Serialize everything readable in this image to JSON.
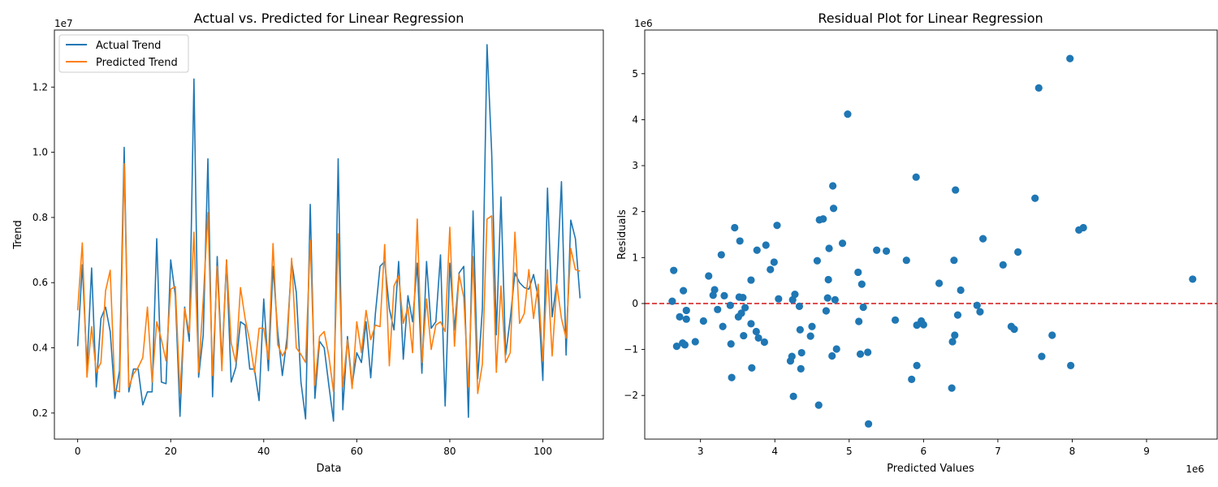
{
  "chart_data": [
    {
      "type": "line",
      "title": "Actual vs. Predicted for Linear Regression",
      "xlabel": "Data",
      "ylabel": "Trend",
      "offset_text": "1e7",
      "xlim": [
        -5,
        113
      ],
      "ylim": [
        1200000,
        13750000
      ],
      "xticks": [
        0,
        20,
        40,
        60,
        80,
        100
      ],
      "xtick_labels": [
        "0",
        "20",
        "40",
        "60",
        "80",
        "100"
      ],
      "yticks": [
        2000000,
        4000000,
        6000000,
        8000000,
        10000000,
        12000000
      ],
      "ytick_labels": [
        "0.2",
        "0.4",
        "0.6",
        "0.8",
        "1.0",
        "1.2"
      ],
      "legend_position": "top-left",
      "x_start": 0,
      "series": [
        {
          "name": "Actual Trend",
          "color": "#1f77b4",
          "values": [
            4050000,
            6550000,
            3400000,
            6450000,
            2800000,
            4900000,
            5250000,
            4500000,
            2450000,
            3300000,
            10150000,
            2650000,
            3350000,
            3350000,
            2250000,
            2650000,
            2650000,
            7350000,
            2950000,
            2900000,
            6700000,
            5600000,
            1900000,
            5250000,
            4200000,
            12250000,
            3100000,
            4400000,
            9800000,
            2500000,
            6800000,
            3500000,
            6700000,
            2950000,
            3400000,
            4800000,
            4700000,
            3350000,
            3350000,
            2380000,
            5500000,
            3300000,
            6500000,
            4500000,
            3150000,
            4300000,
            6650000,
            5700000,
            2950000,
            1820000,
            8400000,
            2450000,
            4200000,
            4000000,
            2850000,
            1750000,
            9800000,
            2100000,
            4350000,
            2850000,
            3850000,
            3550000,
            4800000,
            3080000,
            5050000,
            6500000,
            6650000,
            5200000,
            4550000,
            6650000,
            3650000,
            5600000,
            4800000,
            6600000,
            3220000,
            6650000,
            4600000,
            4800000,
            6850000,
            2220000,
            6600000,
            4550000,
            6300000,
            6500000,
            1870000,
            8200000,
            3050000,
            5200000,
            13300000,
            10000000,
            4400000,
            8630000,
            3780000,
            4900000,
            6300000,
            6000000,
            5850000,
            5800000,
            6250000,
            5550000,
            3000000,
            8900000,
            4950000,
            6000000,
            9100000,
            3780000,
            7920000,
            7350000,
            5520000
          ]
        },
        {
          "name": "Predicted Trend",
          "color": "#ff7f0e",
          "values": [
            5150000,
            7220000,
            3100000,
            4650000,
            3250000,
            3550000,
            5750000,
            6380000,
            2700000,
            2650000,
            9650000,
            2800000,
            3200000,
            3400000,
            3700000,
            5250000,
            2950000,
            4800000,
            4250000,
            3600000,
            5800000,
            5880000,
            2600000,
            5200000,
            4450000,
            7550000,
            3250000,
            5500000,
            8150000,
            3150000,
            6500000,
            3300000,
            6700000,
            4150000,
            3550000,
            5850000,
            4900000,
            4200000,
            3250000,
            4600000,
            4600000,
            3650000,
            7200000,
            4100000,
            3750000,
            4000000,
            6750000,
            4000000,
            3800000,
            3550000,
            7300000,
            2850000,
            4350000,
            4500000,
            3750000,
            2650000,
            7500000,
            2800000,
            4250000,
            2750000,
            4800000,
            3850000,
            5150000,
            4250000,
            4700000,
            4650000,
            7170000,
            3450000,
            5900000,
            6200000,
            4750000,
            5250000,
            3850000,
            7950000,
            3550000,
            5500000,
            3950000,
            4700000,
            4800000,
            4500000,
            7700000,
            4050000,
            6250000,
            5550000,
            2800000,
            6800000,
            2600000,
            3500000,
            7950000,
            8050000,
            3250000,
            5900000,
            3550000,
            3850000,
            7550000,
            4750000,
            5050000,
            6400000,
            4900000,
            5950000,
            3600000,
            6400000,
            3750000,
            5950000,
            4900000,
            4300000,
            7050000,
            6400000,
            6350000
          ]
        }
      ]
    },
    {
      "type": "scatter",
      "title": "Residual Plot for Linear Regression",
      "xlabel": "Predicted Values",
      "ylabel": "Residuals",
      "x_offset_text": "1e6",
      "y_offset_text": "1e6",
      "xlim": [
        2250000,
        9950000
      ],
      "ylim": [
        -2950000,
        5950000
      ],
      "xticks": [
        3000000,
        4000000,
        5000000,
        6000000,
        7000000,
        8000000,
        9000000
      ],
      "xtick_labels": [
        "3",
        "4",
        "5",
        "6",
        "7",
        "8",
        "9"
      ],
      "yticks": [
        -2000000,
        -1000000,
        0,
        1000000,
        2000000,
        3000000,
        4000000,
        5000000
      ],
      "ytick_labels": [
        "−2",
        "−1",
        "0",
        "1",
        "2",
        "3",
        "4",
        "5"
      ],
      "point_color": "#1f77b4",
      "reference_line": {
        "y": 0,
        "color": "#d62728",
        "style": "dashed"
      },
      "points": [
        [
          2620000,
          50000
        ],
        [
          2640000,
          720000
        ],
        [
          2680000,
          -930000
        ],
        [
          2720000,
          -290000
        ],
        [
          2760000,
          -860000
        ],
        [
          2770000,
          280000
        ],
        [
          2790000,
          -900000
        ],
        [
          2810000,
          -150000
        ],
        [
          2810000,
          -340000
        ],
        [
          2930000,
          -830000
        ],
        [
          3040000,
          -380000
        ],
        [
          3110000,
          600000
        ],
        [
          3170000,
          180000
        ],
        [
          3190000,
          300000
        ],
        [
          3230000,
          -130000
        ],
        [
          3280000,
          1060000
        ],
        [
          3300000,
          -500000
        ],
        [
          3320000,
          170000
        ],
        [
          3400000,
          -40000
        ],
        [
          3410000,
          -880000
        ],
        [
          3420000,
          -1610000
        ],
        [
          3460000,
          1650000
        ],
        [
          3510000,
          -290000
        ],
        [
          3520000,
          140000
        ],
        [
          3530000,
          1360000
        ],
        [
          3550000,
          -210000
        ],
        [
          3570000,
          130000
        ],
        [
          3580000,
          -700000
        ],
        [
          3600000,
          -90000
        ],
        [
          3680000,
          -440000
        ],
        [
          3680000,
          510000
        ],
        [
          3690000,
          -1400000
        ],
        [
          3750000,
          -610000
        ],
        [
          3760000,
          1160000
        ],
        [
          3780000,
          -750000
        ],
        [
          3860000,
          -840000
        ],
        [
          3880000,
          1270000
        ],
        [
          3940000,
          740000
        ],
        [
          3990000,
          900000
        ],
        [
          4030000,
          1700000
        ],
        [
          4050000,
          100000
        ],
        [
          4210000,
          -1250000
        ],
        [
          4230000,
          -1150000
        ],
        [
          4240000,
          80000
        ],
        [
          4250000,
          -2020000
        ],
        [
          4270000,
          200000
        ],
        [
          4330000,
          -60000
        ],
        [
          4340000,
          -570000
        ],
        [
          4350000,
          -1420000
        ],
        [
          4360000,
          -1070000
        ],
        [
          4480000,
          -710000
        ],
        [
          4500000,
          -500000
        ],
        [
          4570000,
          930000
        ],
        [
          4590000,
          -2210000
        ],
        [
          4600000,
          1820000
        ],
        [
          4650000,
          1840000
        ],
        [
          4690000,
          -160000
        ],
        [
          4710000,
          120000
        ],
        [
          4720000,
          520000
        ],
        [
          4730000,
          1200000
        ],
        [
          4770000,
          -1140000
        ],
        [
          4780000,
          2560000
        ],
        [
          4790000,
          2070000
        ],
        [
          4810000,
          80000
        ],
        [
          4830000,
          -990000
        ],
        [
          4910000,
          1310000
        ],
        [
          4980000,
          4120000
        ],
        [
          5120000,
          680000
        ],
        [
          5130000,
          -390000
        ],
        [
          5150000,
          -1100000
        ],
        [
          5170000,
          420000
        ],
        [
          5190000,
          -80000
        ],
        [
          5250000,
          -1060000
        ],
        [
          5260000,
          -2620000
        ],
        [
          5370000,
          1160000
        ],
        [
          5500000,
          1140000
        ],
        [
          5620000,
          -360000
        ],
        [
          5770000,
          940000
        ],
        [
          5840000,
          -1650000
        ],
        [
          5900000,
          2750000
        ],
        [
          5910000,
          -470000
        ],
        [
          5910000,
          -1350000
        ],
        [
          5970000,
          -380000
        ],
        [
          6000000,
          -460000
        ],
        [
          6210000,
          440000
        ],
        [
          6380000,
          -1840000
        ],
        [
          6390000,
          -830000
        ],
        [
          6410000,
          940000
        ],
        [
          6420000,
          -690000
        ],
        [
          6430000,
          2470000
        ],
        [
          6460000,
          -250000
        ],
        [
          6500000,
          290000
        ],
        [
          6720000,
          -40000
        ],
        [
          6760000,
          -180000
        ],
        [
          6800000,
          1410000
        ],
        [
          7070000,
          840000
        ],
        [
          7180000,
          -500000
        ],
        [
          7220000,
          -560000
        ],
        [
          7270000,
          1120000
        ],
        [
          7500000,
          2290000
        ],
        [
          7550000,
          4690000
        ],
        [
          7590000,
          -1150000
        ],
        [
          7730000,
          -690000
        ],
        [
          7970000,
          5330000
        ],
        [
          7980000,
          -1350000
        ],
        [
          8090000,
          1600000
        ],
        [
          8150000,
          1650000
        ],
        [
          9620000,
          530000
        ]
      ]
    }
  ]
}
